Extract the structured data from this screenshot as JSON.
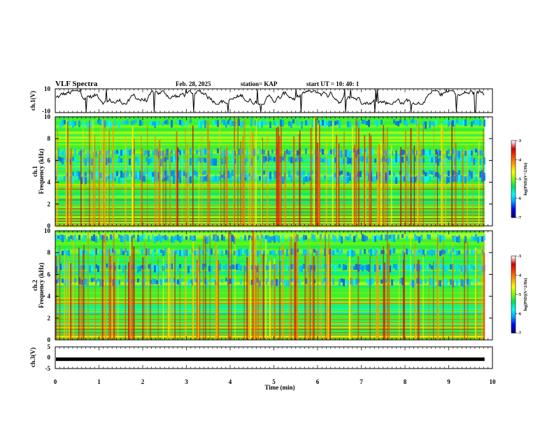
{
  "header": {
    "title": "VLF Spectra",
    "date": "Feb. 28, 2025",
    "station": "station= KAP",
    "start_ut": "start  UT  =   10: 40: 1"
  },
  "colors": {
    "trace": "#000000",
    "colormap": [
      "#ffffff",
      "#d20000",
      "#ff4400",
      "#ffa000",
      "#ffff00",
      "#80ff00",
      "#00e060",
      "#00ffff",
      "#00a0ff",
      "#0000ff",
      "#000080"
    ]
  },
  "chart_data": [
    {
      "type": "line",
      "ylabel": "ch.1(V)",
      "ylim": [
        -10,
        10
      ],
      "yticks": [
        "10",
        "-10"
      ],
      "description_series": "waveform amplitude, fluctuating mostly between -2 and 8 V"
    },
    {
      "type": "heatmap",
      "ylabel": "ch.1\nFrequency (kHz)",
      "ylim": [
        0,
        10
      ],
      "yticks": [
        "0",
        "2",
        "4",
        "6",
        "8",
        "10"
      ],
      "colorbar": {
        "label": "log(PSD)(V^2/Hz)",
        "ticks": [
          "-3",
          "-4",
          "-5",
          "-6",
          "-7"
        ],
        "range": [
          -7,
          -3
        ]
      },
      "bands_khz": [
        4.2,
        4.6,
        5.9,
        6.6,
        9.3
      ]
    },
    {
      "type": "heatmap",
      "ylabel": "ch.2\nFrequency (kHz)",
      "ylim": [
        0,
        10
      ],
      "yticks": [
        "0",
        "2",
        "4",
        "6",
        "8",
        "10"
      ],
      "colorbar": {
        "label": "log(PSD)(V^2/Hz)",
        "ticks": [
          "-3",
          "-4",
          "-5",
          "-6",
          "-7"
        ],
        "range": [
          -7,
          -3
        ]
      },
      "bands_khz": [
        5.2,
        6.5,
        7.9,
        9.2
      ]
    },
    {
      "type": "line",
      "ylabel": "ch.3(V)",
      "ylim": [
        -5,
        5
      ],
      "yticks": [
        "5",
        "0",
        "-5"
      ],
      "level_v": -0.7
    }
  ],
  "xaxis": {
    "xlabel": "Time (min)",
    "xlim": [
      0,
      10
    ],
    "xticks": [
      "0",
      "1",
      "2",
      "3",
      "4",
      "5",
      "6",
      "7",
      "8",
      "9",
      "10"
    ],
    "data_end_min": 9.82
  }
}
